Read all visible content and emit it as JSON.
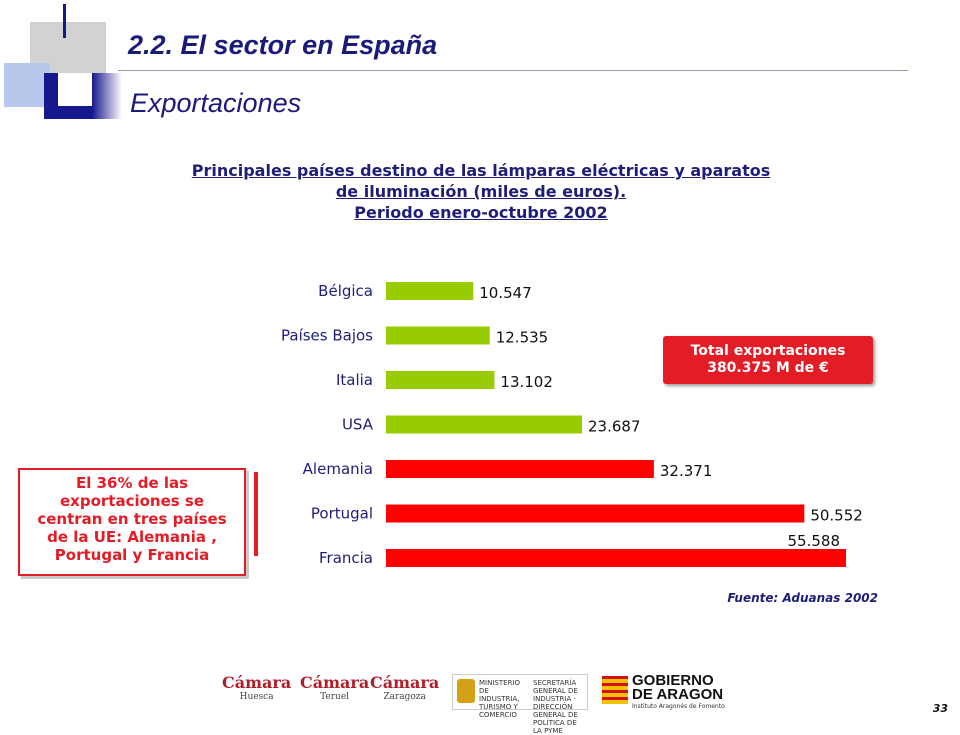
{
  "header": {
    "title": "2.2. El sector en España",
    "subtitle": "Exportaciones"
  },
  "chart_heading": {
    "line1": "Principales países destino de las lámparas eléctricas y aparatos",
    "line2": "de iluminación (miles de euros).",
    "line3": "Periodo enero-octubre 2002"
  },
  "chart_data": {
    "type": "bar",
    "orientation": "horizontal",
    "categories": [
      "Bélgica",
      "Países Bajos",
      "Italia",
      "USA",
      "Alemania",
      "Portugal",
      "Francia"
    ],
    "values": [
      10547,
      12535,
      13102,
      23687,
      32371,
      50552,
      55588
    ],
    "value_labels": [
      "10.547",
      "12.535",
      "13.102",
      "23.687",
      "32.371",
      "50.552",
      "55.588"
    ],
    "bar_colors": [
      "#99cc00",
      "#99cc00",
      "#99cc00",
      "#99cc00",
      "#ff0000",
      "#ff0000",
      "#ff0000"
    ],
    "xlim": [
      0,
      60000
    ],
    "grid": false
  },
  "total_box": {
    "line1": "Total exportaciones",
    "line2": "380.375 M de €"
  },
  "note_box": {
    "line1": "El 36% de las",
    "line2": "exportaciones se",
    "line3": "centran en tres países",
    "line4": "de la UE: Alemania ,",
    "line5": "Portugal y Francia"
  },
  "source": "Fuente: Aduanas 2002",
  "footer": {
    "camara1_name": "Cámara",
    "camara1_city": "Huesca",
    "camara2_name": "Cámara",
    "camara2_city": "Teruel",
    "camara3_name": "Cámara",
    "camara3_city": "Zaragoza",
    "ministerio_line1": "MINISTERIO DE INDUSTRIA, TURISMO Y COMERCIO",
    "ministerio_line2": "SECRETARÍA GENERAL DE INDUSTRIA · DIRECCIÓN GENERAL DE POLÍTICA DE LA PYME",
    "aragon_line1": "GOBIERNO",
    "aragon_line2": "DE ARAGON",
    "aragon_inst": "Instituto Aragonés de Fomento"
  },
  "page_number": "33",
  "colors": {
    "navy": "#1e1e78",
    "green_bar": "#99cc00",
    "red_bar": "#ff0000",
    "accent_red": "#e31c26"
  }
}
